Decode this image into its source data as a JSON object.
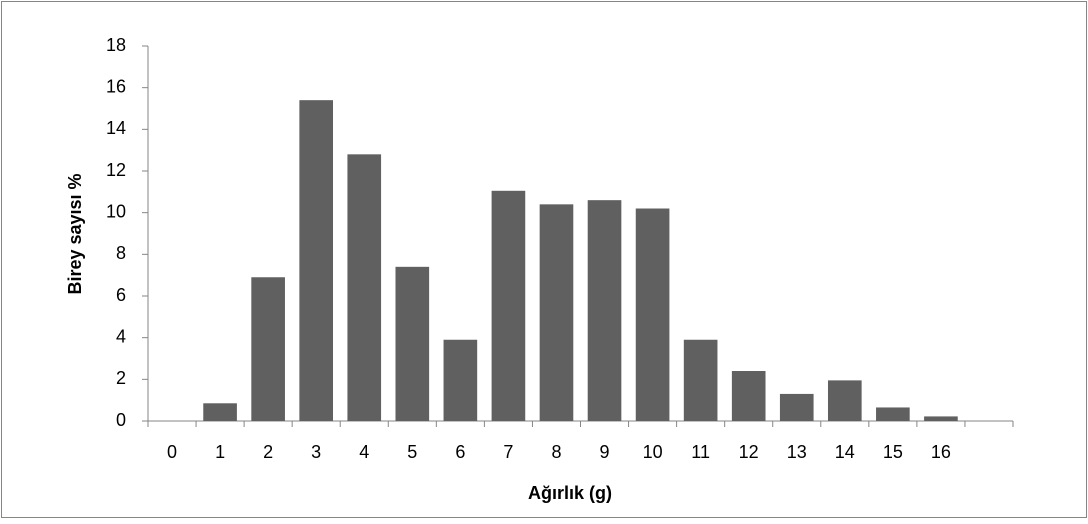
{
  "chart_data": {
    "type": "bar",
    "x_label": "Ağırlık (g)",
    "y_label": "Birey sayısı %",
    "categories": [
      "0",
      "1",
      "2",
      "3",
      "4",
      "5",
      "6",
      "7",
      "8",
      "9",
      "10",
      "11",
      "12",
      "13",
      "14",
      "15",
      "16",
      null
    ],
    "values": [
      0,
      0.85,
      6.9,
      15.4,
      12.8,
      7.4,
      3.9,
      11.05,
      10.4,
      10.6,
      10.2,
      3.9,
      2.4,
      1.3,
      1.95,
      0.65,
      0.22,
      null
    ],
    "color": "#606060",
    "ylim": [
      0,
      18
    ],
    "yticks": [
      0,
      2,
      4,
      6,
      8,
      10,
      12,
      14,
      16,
      18
    ],
    "grid": false
  }
}
